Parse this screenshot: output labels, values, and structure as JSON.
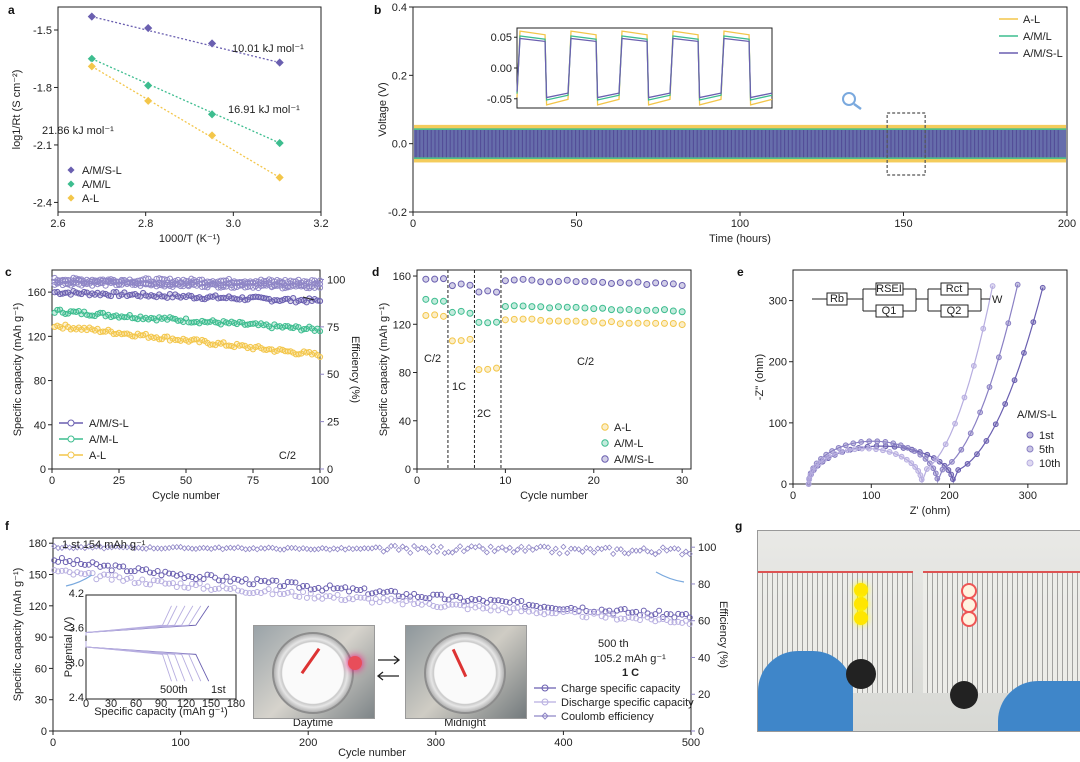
{
  "colors": {
    "AL": "#f3c64a",
    "AML": "#3dbd8f",
    "AMSL": "#6a5fb0",
    "AMSL_light": "#b7aee0",
    "eff": "#8f86c6"
  },
  "chart_data": [
    {
      "id": "a",
      "type": "scatter",
      "panel_label": "a",
      "xlabel": "1000/T (K⁻¹)",
      "ylabel": "log1/Rt (S cm⁻²)",
      "xlim": [
        2.55,
        3.25
      ],
      "ylim": [
        -2.45,
        -1.38
      ],
      "xticks": [
        "2.6",
        "2.8",
        "3.0",
        "3.2"
      ],
      "yticks": [
        "-1.5",
        "-1.8",
        "-2.1",
        "-2.4"
      ],
      "legend": [
        "A/M/S-L",
        "A/M/L",
        "A-L"
      ],
      "series": [
        {
          "name": "A/M/S-L",
          "x": [
            2.64,
            2.79,
            2.96,
            3.14
          ],
          "y": [
            -1.43,
            -1.49,
            -1.57,
            -1.67
          ],
          "annotation": "10.01 kJ mol⁻¹"
        },
        {
          "name": "A/M/L",
          "x": [
            2.64,
            2.79,
            2.96,
            3.14
          ],
          "y": [
            -1.65,
            -1.79,
            -1.94,
            -2.09
          ],
          "annotation": "16.91 kJ mol⁻¹"
        },
        {
          "name": "A-L",
          "x": [
            2.64,
            2.79,
            2.96,
            3.14
          ],
          "y": [
            -1.69,
            -1.87,
            -2.05,
            -2.27
          ],
          "annotation": "21.86 kJ mol⁻¹"
        }
      ]
    },
    {
      "id": "b",
      "type": "line",
      "panel_label": "b",
      "xlabel": "Time (hours)",
      "ylabel": "Voltage (V)",
      "xlim": [
        0,
        200
      ],
      "ylim": [
        -0.2,
        0.4
      ],
      "xticks": [
        "0",
        "50",
        "100",
        "150",
        "200"
      ],
      "yticks": [
        "-0.2",
        "0.0",
        "0.2",
        "0.4"
      ],
      "legend": [
        "A-L",
        "A/M/L",
        "A/M/S-L"
      ],
      "series": [
        {
          "name": "A-L",
          "amplitude": 0.055
        },
        {
          "name": "A/M/L",
          "amplitude": 0.045
        },
        {
          "name": "A/M/S-L",
          "amplitude": 0.04
        }
      ],
      "inset_yticks": [
        "0.05",
        "0.00",
        "-0.05"
      ],
      "inset_cycles": 5
    },
    {
      "id": "c",
      "type": "scatter",
      "panel_label": "c",
      "xlabel": "Cycle number",
      "ylabel": "Specific capacity (mAh g⁻¹)",
      "y2label": "Efficiency (%)",
      "xlim": [
        0,
        100
      ],
      "ylim": [
        0,
        180
      ],
      "y2lim": [
        0,
        105
      ],
      "xticks": [
        "0",
        "25",
        "50",
        "75",
        "100"
      ],
      "yticks": [
        "0",
        "40",
        "80",
        "120",
        "160"
      ],
      "y2ticks": [
        "0",
        "25",
        "50",
        "75",
        "100"
      ],
      "legend": [
        "A/M/S-L",
        "A/M-L",
        "A-L"
      ],
      "rate_note": "C/2",
      "series": [
        {
          "name": "A/M/S-L",
          "start": 160,
          "end": 152
        },
        {
          "name": "A/M-L",
          "start": 143,
          "end": 126
        },
        {
          "name": "A-L",
          "start": 130,
          "end": 103
        },
        {
          "name": "A/M/S-L efficiency",
          "start": 100,
          "end": 99
        },
        {
          "name": "A/M-L efficiency",
          "start": 98,
          "end": 96
        },
        {
          "name": "A-L efficiency",
          "start": 99,
          "end": 97
        }
      ]
    },
    {
      "id": "d",
      "type": "scatter",
      "panel_label": "d",
      "xlabel": "Cycle number",
      "ylabel": "Specific capacity (mAh g⁻¹)",
      "xlim": [
        0,
        31
      ],
      "ylim": [
        0,
        165
      ],
      "xticks": [
        "0",
        "10",
        "20",
        "30"
      ],
      "yticks": [
        "0",
        "40",
        "80",
        "120",
        "160"
      ],
      "legend": [
        "A-L",
        "A/M-L",
        "A/M/S-L"
      ],
      "rate_labels": [
        "C/2",
        "1C",
        "2C",
        "C/2"
      ],
      "series": [
        {
          "name": "A-L",
          "segments": [
            127,
            107,
            83,
            124
          ]
        },
        {
          "name": "A/M-L",
          "segments": [
            140,
            130,
            121,
            135
          ]
        },
        {
          "name": "A/M/S-L",
          "segments": [
            157,
            153,
            147,
            157
          ]
        }
      ]
    },
    {
      "id": "e",
      "type": "scatter",
      "panel_label": "e",
      "xlabel": "Z' (ohm)",
      "ylabel": "-Z'' (ohm)",
      "xlim": [
        0,
        350
      ],
      "ylim": [
        0,
        350
      ],
      "xticks": [
        "0",
        "100",
        "200",
        "300"
      ],
      "yticks": [
        "0",
        "100",
        "200",
        "300"
      ],
      "legend_title": "A/M/S-L",
      "legend": [
        "1st",
        "5th",
        "10th"
      ],
      "circuit_labels": [
        "Rb",
        "RSEI",
        "Q1",
        "Rct",
        "Q2",
        "W"
      ],
      "series": [
        {
          "name": "1st",
          "r0": 20,
          "r1": 205,
          "height": 62
        },
        {
          "name": "5th",
          "r0": 20,
          "r1": 185,
          "height": 70
        },
        {
          "name": "10th",
          "r0": 20,
          "r1": 165,
          "height": 58
        }
      ]
    },
    {
      "id": "f",
      "type": "scatter",
      "panel_label": "f",
      "xlabel": "Cycle number",
      "ylabel": "Specific capacity (mAh g⁻¹)",
      "y2label": "Efficiency (%)",
      "xlim": [
        0,
        500
      ],
      "ylim": [
        0,
        185
      ],
      "y2lim": [
        0,
        105
      ],
      "xticks": [
        "0",
        "100",
        "200",
        "300",
        "400",
        "500"
      ],
      "yticks": [
        "0",
        "30",
        "60",
        "90",
        "120",
        "150",
        "180"
      ],
      "y2ticks": [
        "0",
        "20",
        "40",
        "60",
        "80",
        "100"
      ],
      "legend": [
        "Charge specific capacity",
        "Discharge specific capacity",
        "Coulomb efficiency"
      ],
      "note_first": "1 st   154 mAh g⁻¹",
      "note_last_1": "500 th",
      "note_last_2": "105.2 mAh g⁻¹",
      "rate_note": "1 C",
      "series": [
        {
          "name": "Charge specific capacity",
          "start": 165,
          "end": 110
        },
        {
          "name": "Discharge specific capacity",
          "start": 154,
          "end": 105
        },
        {
          "name": "Coulomb efficiency",
          "start": 100,
          "end": 98
        }
      ],
      "inset": {
        "xlabel": "Specific capacity (mAh g⁻¹)",
        "ylabel": "Potential (V)",
        "xticks": [
          "0",
          "30",
          "60",
          "90",
          "120",
          "150",
          "180"
        ],
        "yticks": [
          "2.4",
          "3.0",
          "3.6",
          "4.2"
        ],
        "curve_labels": [
          "500th",
          "1st"
        ]
      },
      "photo_labels": [
        "Daytime",
        "Midnight"
      ]
    }
  ],
  "panel_g": {
    "label": "g"
  }
}
